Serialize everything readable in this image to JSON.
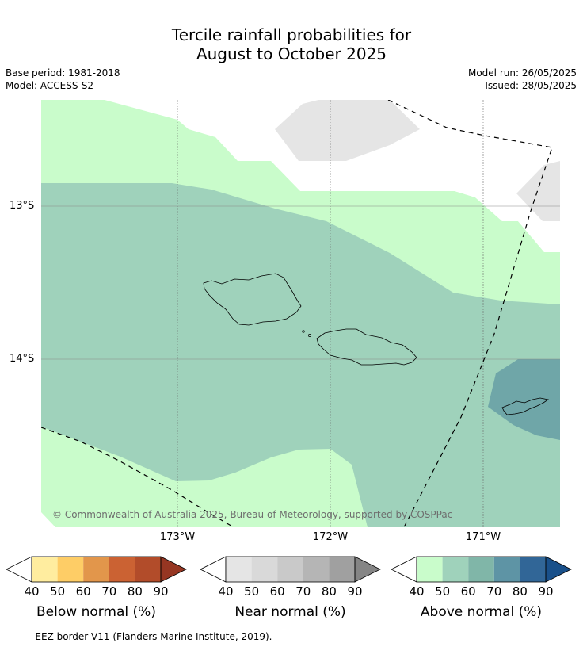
{
  "title_line1": "Tercile rainfall probabilities for",
  "title_line2": "August to October 2025",
  "base_period": "Base period: 1981-2018",
  "model": "Model: ACCESS-S2",
  "model_run": "Model run: 26/05/2025",
  "issued": "Issued: 28/05/2025",
  "lat_labels": [
    "13°S",
    "14°S"
  ],
  "lon_labels": [
    "173°W",
    "172°W",
    "171°W"
  ],
  "copyright": "© Commonwealth of Australia 2025, Bureau of Meteorology, supported by COSPPac",
  "colorbars": [
    {
      "title": "Below normal (%)",
      "values": [
        "40",
        "50",
        "60",
        "70",
        "80",
        "90"
      ],
      "colors": [
        "#ffffff",
        "#ffed9f",
        "#fecd66",
        "#e2964b",
        "#cb6233",
        "#b24c2a",
        "#963622"
      ]
    },
    {
      "title": "Near normal (%)",
      "values": [
        "40",
        "50",
        "60",
        "70",
        "80",
        "90"
      ],
      "colors": [
        "#ffffff",
        "#e5e5e5",
        "#d9d9d9",
        "#c9c9c9",
        "#b5b5b5",
        "#a0a0a0",
        "#858585"
      ]
    },
    {
      "title": "Above normal (%)",
      "values": [
        "40",
        "50",
        "60",
        "70",
        "80",
        "90"
      ],
      "colors": [
        "#ffffff",
        "#c9fccb",
        "#9fd2bb",
        "#80b6a8",
        "#5e94a5",
        "#316697",
        "#19508a"
      ]
    }
  ],
  "footnote": "--  --  -- EEZ border V11 (Flanders Marine Institute, 2019).",
  "region_colors": {
    "above_40_50": "#c9fccb",
    "above_50_60": "#9fd2bb",
    "above_60_70": "#6fa6a8",
    "near_40_50": "#e5e5e5"
  }
}
